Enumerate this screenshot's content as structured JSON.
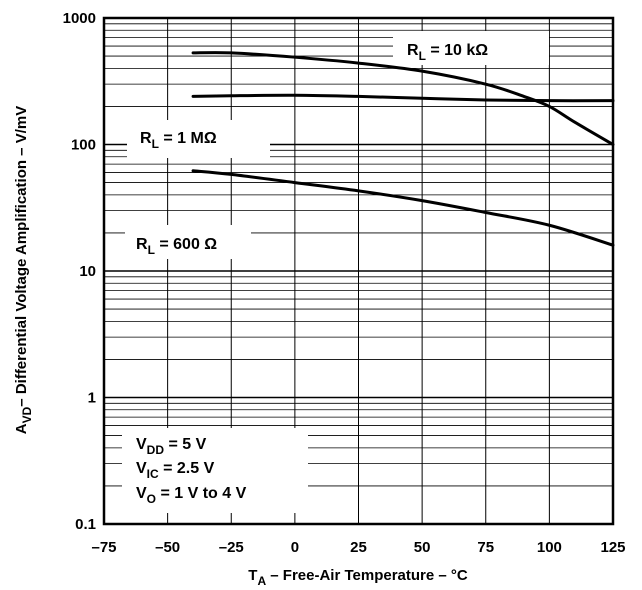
{
  "chart_data": {
    "type": "line",
    "xlabel": {
      "main": "T",
      "sub": "A",
      "rest": " – Free-Air Temperature – °C"
    },
    "ylabel": {
      "main": "A",
      "sub": "VD",
      "rest": "– Differential Voltage Amplification – V/mV"
    },
    "xlim": [
      -75,
      125
    ],
    "ylim": [
      0.1,
      1000
    ],
    "yscale": "log",
    "grid": true,
    "x_ticks": [
      "–75",
      "–50",
      "–25",
      "0",
      "25",
      "50",
      "75",
      "100",
      "125"
    ],
    "y_ticks": [
      "0.1",
      "1",
      "10",
      "100",
      "1000"
    ],
    "series": [
      {
        "name": "R_L = 10 kΩ",
        "x": [
          -40,
          -25,
          0,
          25,
          50,
          75,
          90,
          100,
          110,
          125
        ],
        "y": [
          530,
          530,
          490,
          440,
          380,
          300,
          240,
          200,
          150,
          100
        ]
      },
      {
        "name": "R_L = 1 MΩ",
        "x": [
          -40,
          -25,
          0,
          25,
          50,
          75,
          100,
          125
        ],
        "y": [
          240,
          243,
          245,
          240,
          232,
          225,
          222,
          222
        ]
      },
      {
        "name": "R_L = 600 Ω",
        "x": [
          -40,
          -25,
          0,
          25,
          50,
          75,
          100,
          125
        ],
        "y": [
          62,
          58,
          50,
          43,
          36,
          29,
          23,
          16
        ]
      }
    ],
    "labels": [
      {
        "pre": "R",
        "sub": "L",
        "post": " = 10 kΩ"
      },
      {
        "pre": "R",
        "sub": "L",
        "post": " = 1 MΩ"
      },
      {
        "pre": "R",
        "sub": "L",
        "post": " = 600 Ω"
      }
    ],
    "conditions": [
      {
        "pre": "V",
        "sub": "DD",
        "post": " = 5 V"
      },
      {
        "pre": "V",
        "sub": "IC",
        "post": " = 2.5 V"
      },
      {
        "pre": "V",
        "sub": "O",
        "post": " = 1 V to 4 V"
      }
    ]
  }
}
